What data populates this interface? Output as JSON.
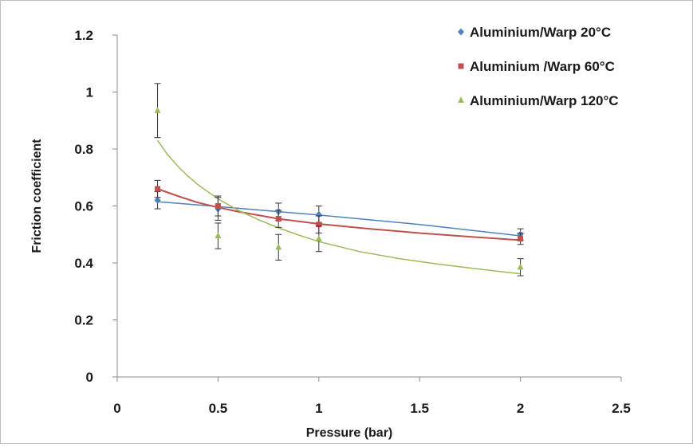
{
  "chart_data": {
    "type": "scatter",
    "title": "",
    "xlabel": "Pressure (bar)",
    "ylabel": "Friction coefficient",
    "xlim": [
      0,
      2.5
    ],
    "ylim": [
      0,
      1.2
    ],
    "x_ticks": [
      "0",
      "0.5",
      "1",
      "1.5",
      "2",
      "2.5"
    ],
    "y_ticks": [
      "0",
      "0.2",
      "0.4",
      "0.6",
      "0.8",
      "1",
      "1.2"
    ],
    "grid": false,
    "legend_position": "top-right",
    "series": [
      {
        "name": "Aluminium/Warp 20°C",
        "color": "#4f81bd",
        "marker": "diamond",
        "x": [
          0.2,
          0.5,
          0.8,
          1.0,
          2.0
        ],
        "y": [
          0.62,
          0.59,
          0.58,
          0.57,
          0.5
        ],
        "err": [
          0.03,
          0.04,
          0.03,
          0.03,
          0.02
        ],
        "trend": [
          [
            0.2,
            0.615
          ],
          [
            0.5,
            0.598
          ],
          [
            0.8,
            0.58
          ],
          [
            1.0,
            0.568
          ],
          [
            1.5,
            0.535
          ],
          [
            2.0,
            0.495
          ]
        ]
      },
      {
        "name": "Aluminium /Warp 60°C",
        "color": "#c0504d",
        "marker": "square",
        "x": [
          0.2,
          0.5,
          0.8,
          1.0,
          2.0
        ],
        "y": [
          0.66,
          0.6,
          0.555,
          0.535,
          0.485
        ],
        "err": [
          0.03,
          0.035,
          0.03,
          0.03,
          0.02
        ],
        "trend": [
          [
            0.2,
            0.66
          ],
          [
            0.3,
            0.635
          ],
          [
            0.4,
            0.612
          ],
          [
            0.5,
            0.595
          ],
          [
            0.6,
            0.58
          ],
          [
            0.8,
            0.555
          ],
          [
            1.0,
            0.537
          ],
          [
            1.25,
            0.52
          ],
          [
            1.5,
            0.505
          ],
          [
            1.75,
            0.492
          ],
          [
            2.0,
            0.48
          ]
        ]
      },
      {
        "name": "Aluminium/Warp 120°C",
        "color": "#9bbb59",
        "marker": "triangle",
        "x": [
          0.2,
          0.5,
          0.8,
          1.0,
          2.0
        ],
        "y": [
          0.935,
          0.495,
          0.455,
          0.485,
          0.385
        ],
        "err": [
          0.095,
          0.045,
          0.045,
          0.045,
          0.03
        ],
        "trend": [
          [
            0.2,
            0.83
          ],
          [
            0.25,
            0.78
          ],
          [
            0.3,
            0.74
          ],
          [
            0.35,
            0.705
          ],
          [
            0.4,
            0.675
          ],
          [
            0.5,
            0.625
          ],
          [
            0.6,
            0.585
          ],
          [
            0.7,
            0.552
          ],
          [
            0.8,
            0.523
          ],
          [
            0.9,
            0.498
          ],
          [
            1.0,
            0.475
          ],
          [
            1.2,
            0.44
          ],
          [
            1.4,
            0.415
          ],
          [
            1.6,
            0.395
          ],
          [
            1.8,
            0.378
          ],
          [
            2.0,
            0.362
          ]
        ]
      }
    ]
  }
}
